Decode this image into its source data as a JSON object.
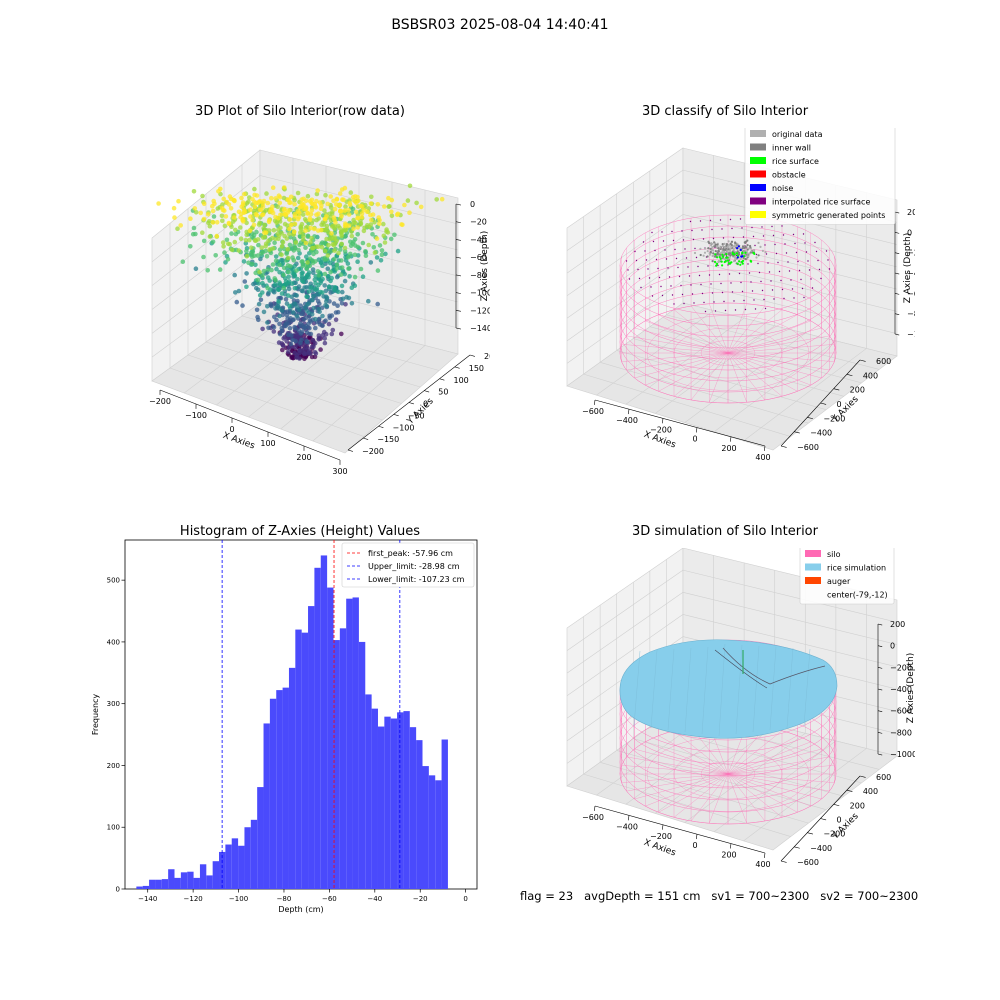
{
  "suptitle": "BSBSR03 2025-08-04 14:40:41",
  "status_line": "flag = 23   avgDepth = 151 cm   sv1 = 700~2300   sv2 = 700~2300",
  "palette": {
    "viridis": [
      "#440154",
      "#46327e",
      "#365c8d",
      "#277f8e",
      "#1fa187",
      "#4ac16d",
      "#a0da39",
      "#fde725"
    ],
    "hist_bar": "#4a4afc",
    "silo": "#ff69b4",
    "rice": "#87ceeb",
    "auger": "#ff4500"
  },
  "panels": {
    "raw": {
      "title": "3D Plot of Silo Interior(row data)",
      "xlabel": "X Axies",
      "ylabel": "Y Axies",
      "zlabel": "Z Axies (Depth)",
      "xticks": [
        "−200",
        "−100",
        "0",
        "100",
        "200",
        "300"
      ],
      "yticks": [
        "200",
        "150",
        "100",
        "50",
        "0",
        "−50",
        "−100",
        "−150",
        "−200"
      ],
      "zticks": [
        "0",
        "−20",
        "−40",
        "−60",
        "−80",
        "−100",
        "−120",
        "−140"
      ]
    },
    "classify": {
      "title": "3D classify of Silo Interior",
      "xlabel": "X Axies",
      "ylabel": "Y Axies",
      "zlabel": "Z Axies (Depth)",
      "xticks": [
        "−600",
        "−400",
        "−200",
        "0",
        "200",
        "400"
      ],
      "yticks": [
        "600",
        "400",
        "200",
        "0",
        "−200",
        "−400",
        "−600"
      ],
      "zticks": [
        "200",
        "0",
        "−200",
        "−400",
        "−600",
        "−800",
        "−1000"
      ],
      "legend": [
        {
          "label": "original data",
          "color": "#b0b0b0"
        },
        {
          "label": "inner wall",
          "color": "#808080"
        },
        {
          "label": "rice surface",
          "color": "#00ff00"
        },
        {
          "label": "obstacle",
          "color": "#ff0000"
        },
        {
          "label": "noise",
          "color": "#0000ff"
        },
        {
          "label": "interpolated rice surface",
          "color": "#800080"
        },
        {
          "label": "symmetric generated points",
          "color": "#ffff00"
        }
      ]
    },
    "simulation": {
      "title": "3D simulation of Silo Interior",
      "xlabel": "X Axies",
      "ylabel": "Y Axies",
      "zlabel": "Z Axies (Depth)",
      "xticks": [
        "−600",
        "−400",
        "−200",
        "0",
        "200",
        "400"
      ],
      "yticks": [
        "600",
        "400",
        "200",
        "0",
        "−200",
        "−400",
        "−600"
      ],
      "zticks": [
        "200",
        "0",
        "−200",
        "−400",
        "−600",
        "−800",
        "−1000"
      ],
      "legend": [
        {
          "label": "silo",
          "color": "#ff69b4"
        },
        {
          "label": "rice simulation",
          "color": "#87ceeb"
        },
        {
          "label": "auger",
          "color": "#ff4500"
        },
        {
          "label": "center(-79,-12)",
          "color": ""
        }
      ]
    }
  },
  "chart_data": [
    {
      "type": "scatter",
      "title": "3D Plot of Silo Interior(row data)",
      "xlabel": "X Axies",
      "ylabel": "Y Axies",
      "zlabel": "Z Axies (Depth)",
      "xlim": [
        -250,
        300
      ],
      "ylim": [
        -200,
        200
      ],
      "zlim": [
        -150,
        10
      ]
    },
    {
      "type": "scatter",
      "title": "3D classify of Silo Interior",
      "xlabel": "X Axies",
      "ylabel": "Y Axies",
      "zlabel": "Z Axies (Depth)",
      "xlim": [
        -700,
        500
      ],
      "ylim": [
        -700,
        700
      ],
      "zlim": [
        -1000,
        200
      ],
      "legend_placement": "top-right"
    },
    {
      "type": "bar",
      "title": "Histogram of Z-Axies (Height) Values",
      "xlabel": "Depth (cm)",
      "ylabel": "Frequency",
      "xlim": [
        -150,
        5
      ],
      "ylim": [
        0,
        565
      ],
      "bin_start": -145,
      "bin_width": 2.8,
      "values": [
        4,
        5,
        15,
        15,
        16,
        32,
        18,
        27,
        28,
        18,
        40,
        22,
        45,
        60,
        72,
        82,
        70,
        100,
        112,
        165,
        268,
        308,
        322,
        326,
        358,
        420,
        415,
        458,
        520,
        540,
        488,
        403,
        422,
        470,
        472,
        400,
        315,
        292,
        263,
        279,
        276,
        286,
        288,
        262,
        241,
        199,
        184,
        176,
        242
      ],
      "xticks": [
        -140,
        -120,
        -100,
        -80,
        -60,
        -40,
        -20,
        0
      ],
      "yticks": [
        0,
        100,
        200,
        300,
        400,
        500
      ],
      "vlines": [
        {
          "name": "first_peak: -57.96 cm",
          "x": -57.96,
          "color": "#ff0000"
        },
        {
          "name": "Upper_limit: -28.98 cm",
          "x": -28.98,
          "color": "#0000ff"
        },
        {
          "name": "Lower_limit: -107.23 cm",
          "x": -107.23,
          "color": "#0000ff"
        }
      ],
      "legend_placement": "top-right"
    },
    {
      "type": "area",
      "title": "3D simulation of Silo Interior",
      "xlabel": "X Axies",
      "ylabel": "Y Axies",
      "zlabel": "Z Axies (Depth)",
      "xlim": [
        -700,
        500
      ],
      "ylim": [
        -700,
        700
      ],
      "zlim": [
        -1000,
        200
      ],
      "legend_placement": "top-right"
    }
  ]
}
